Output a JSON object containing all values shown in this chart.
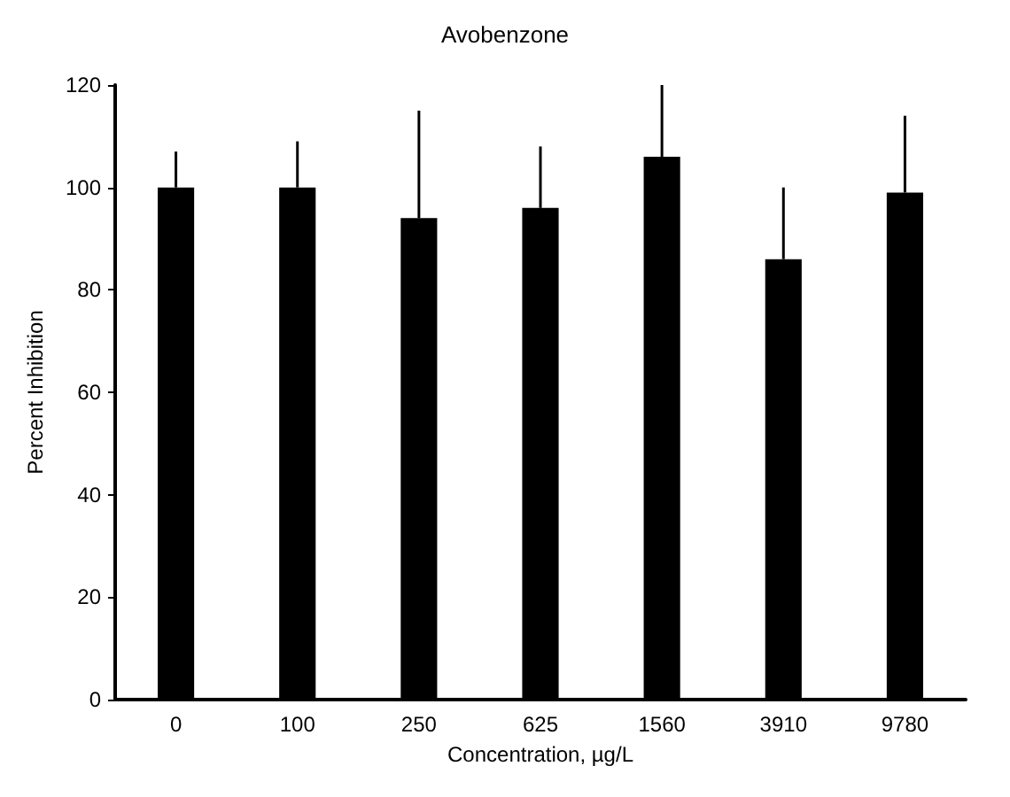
{
  "chart_data": {
    "type": "bar",
    "title": "Avobenzone",
    "xlabel": "Concentration, µg/L",
    "ylabel": "Percent Inhibition",
    "categories": [
      "0",
      "100",
      "250",
      "625",
      "1560",
      "3910",
      "9780"
    ],
    "values": [
      100,
      100,
      94,
      96,
      106,
      86,
      99
    ],
    "errors": [
      [
        100,
        107
      ],
      [
        100,
        109
      ],
      [
        94,
        115
      ],
      [
        96,
        108
      ],
      [
        106,
        120
      ],
      [
        86,
        100
      ],
      [
        99,
        114
      ]
    ],
    "color": "#000000",
    "ylim": [
      0,
      120
    ],
    "yticks": [
      0,
      20,
      40,
      60,
      80,
      100,
      120
    ],
    "grid": false
  }
}
